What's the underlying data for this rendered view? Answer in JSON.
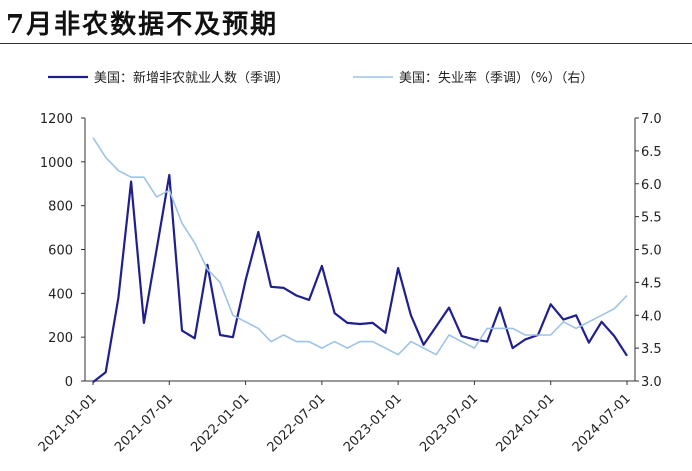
{
  "page_title": "7月非农数据不及预期",
  "chart_data": {
    "type": "line",
    "x_tick_labels": [
      "2021-01-01",
      "2021-07-01",
      "2022-01-01",
      "2022-07-01",
      "2023-01-01",
      "2023-07-01",
      "2024-01-01",
      "2024-07-01"
    ],
    "x": [
      "2021-01",
      "2021-02",
      "2021-03",
      "2021-04",
      "2021-05",
      "2021-06",
      "2021-07",
      "2021-08",
      "2021-09",
      "2021-10",
      "2021-11",
      "2021-12",
      "2022-01",
      "2022-02",
      "2022-03",
      "2022-04",
      "2022-05",
      "2022-06",
      "2022-07",
      "2022-08",
      "2022-09",
      "2022-10",
      "2022-11",
      "2022-12",
      "2023-01",
      "2023-02",
      "2023-03",
      "2023-04",
      "2023-05",
      "2023-06",
      "2023-07",
      "2023-08",
      "2023-09",
      "2023-10",
      "2023-11",
      "2023-12",
      "2024-01",
      "2024-02",
      "2024-03",
      "2024-04",
      "2024-05",
      "2024-06",
      "2024-07"
    ],
    "series": [
      {
        "name": "美国：新增非农就业人数（季调）",
        "axis": "left",
        "color": "#1f1f8f",
        "values": [
          -5,
          40,
          380,
          910,
          265,
          600,
          940,
          230,
          195,
          530,
          210,
          200,
          460,
          680,
          430,
          425,
          390,
          370,
          525,
          310,
          265,
          260,
          265,
          220,
          515,
          300,
          165,
          250,
          335,
          205,
          190,
          180,
          335,
          150,
          190,
          210,
          350,
          280,
          300,
          175,
          270,
          205,
          115
        ]
      },
      {
        "name": "美国：失业率（季调）（%）（右）",
        "axis": "right",
        "color": "#9dc3e6",
        "values": [
          6.7,
          6.4,
          6.2,
          6.1,
          6.1,
          5.8,
          5.9,
          5.4,
          5.1,
          4.7,
          4.5,
          4.0,
          3.9,
          3.8,
          3.6,
          3.7,
          3.6,
          3.6,
          3.5,
          3.6,
          3.5,
          3.6,
          3.6,
          3.5,
          3.4,
          3.6,
          3.5,
          3.4,
          3.7,
          3.6,
          3.5,
          3.8,
          3.8,
          3.8,
          3.7,
          3.7,
          3.7,
          3.9,
          3.8,
          3.9,
          4.0,
          4.1,
          4.3
        ]
      }
    ],
    "y_left": {
      "min": 0,
      "max": 1200,
      "ticks": [
        "0",
        "200",
        "400",
        "600",
        "800",
        "1000",
        "1200"
      ]
    },
    "y_right": {
      "min": 3.0,
      "max": 7.0,
      "ticks": [
        "3.0",
        "3.5",
        "4.0",
        "4.5",
        "5.0",
        "5.5",
        "6.0",
        "6.5",
        "7.0"
      ]
    },
    "legend_position": "top",
    "grid": false
  }
}
